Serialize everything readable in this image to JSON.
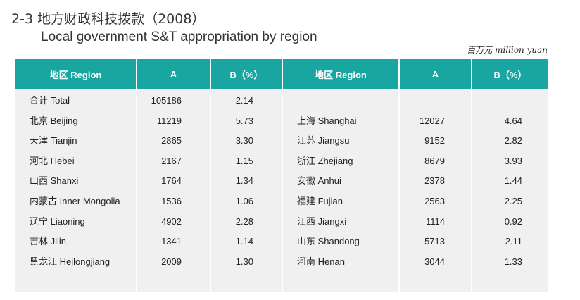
{
  "title": {
    "zh": "2-3 地方财政科技拨款（2008）",
    "en": "Local government S&T appropriation by region"
  },
  "unit": "百万元 million yuan",
  "table": {
    "headers": [
      "地区 Region",
      "A",
      "B（%）",
      "地区 Region",
      "A",
      "B（%）"
    ],
    "left_rows": [
      {
        "region": "合计 Total",
        "a": "105186",
        "b": "2.14"
      },
      {
        "region": "北京 Beijing",
        "a": "11219",
        "b": "5.73"
      },
      {
        "region": "天津 Tianjin",
        "a": "2865",
        "b": "3.30"
      },
      {
        "region": "河北 Hebei",
        "a": "2167",
        "b": "1.15"
      },
      {
        "region": "山西 Shanxi",
        "a": "1764",
        "b": "1.34"
      },
      {
        "region": "内蒙古 Inner Mongolia",
        "a": "1536",
        "b": "1.06"
      },
      {
        "region": "辽宁 Liaoning",
        "a": "4902",
        "b": "2.28"
      },
      {
        "region": "吉林 Jilin",
        "a": "1341",
        "b": "1.14"
      },
      {
        "region": "黑龙江 Heilongjiang",
        "a": "2009",
        "b": "1.30"
      }
    ],
    "right_rows": [
      {
        "region": "",
        "a": "",
        "b": ""
      },
      {
        "region": "上海 Shanghai",
        "a": "12027",
        "b": "4.64"
      },
      {
        "region": "江苏 Jiangsu",
        "a": "9152",
        "b": "2.82"
      },
      {
        "region": "浙江 Zhejiang",
        "a": "8679",
        "b": "3.93"
      },
      {
        "region": "安徽 Anhui",
        "a": "2378",
        "b": "1.44"
      },
      {
        "region": "福建 Fujian",
        "a": "2563",
        "b": "2.25"
      },
      {
        "region": "江西 Jiangxi",
        "a": "1114",
        "b": "0.92"
      },
      {
        "region": "山东 Shandong",
        "a": "5713",
        "b": "2.11"
      },
      {
        "region": "河南 Henan",
        "a": "3044",
        "b": "1.33"
      }
    ]
  },
  "colors": {
    "header_bg": "#1aa6a0",
    "row_bg": "#f0f0f0"
  }
}
